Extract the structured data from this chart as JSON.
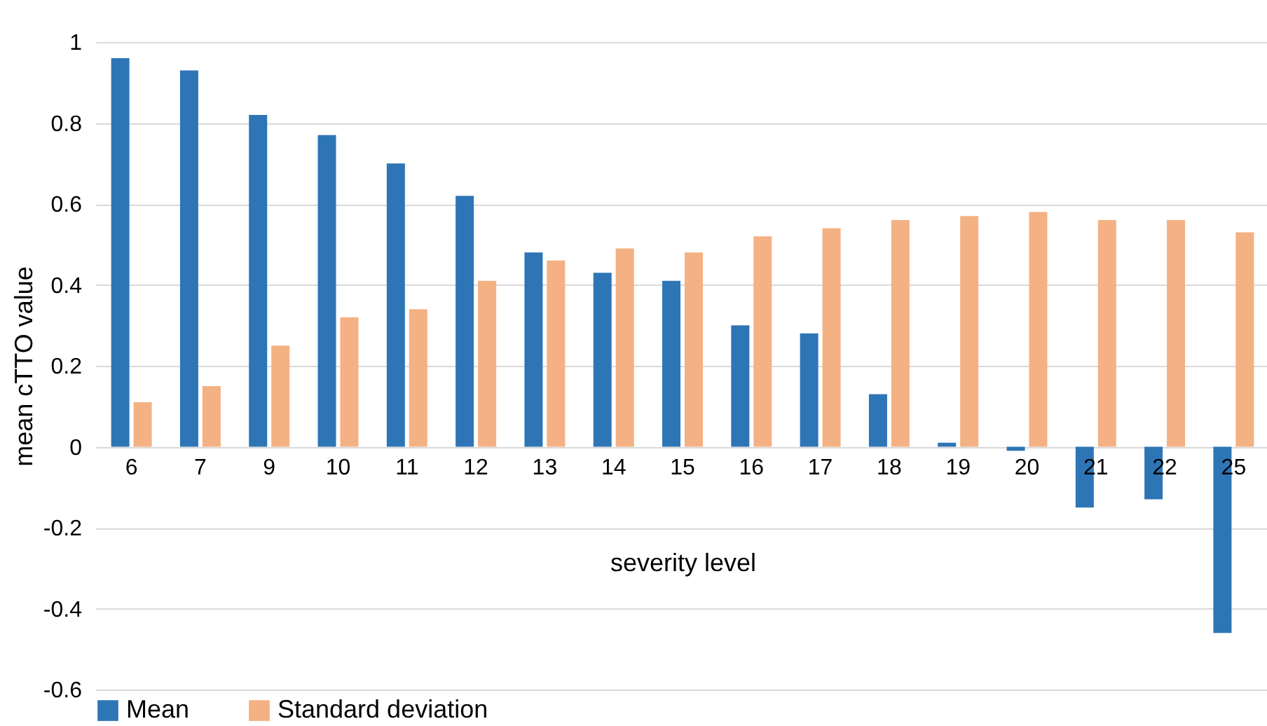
{
  "chart_data": {
    "type": "bar",
    "xlabel": "severity level",
    "ylabel": "mean cTTO value",
    "categories": [
      "6",
      "7",
      "9",
      "10",
      "11",
      "12",
      "13",
      "14",
      "15",
      "16",
      "17",
      "18",
      "19",
      "20",
      "21",
      "22",
      "25"
    ],
    "series": [
      {
        "name": "Mean",
        "color": "#2e75b6",
        "values": [
          0.96,
          0.93,
          0.82,
          0.77,
          0.7,
          0.62,
          0.48,
          0.43,
          0.41,
          0.3,
          0.28,
          0.13,
          0.01,
          -0.01,
          -0.15,
          -0.13,
          -0.46
        ]
      },
      {
        "name": "Standard deviation",
        "color": "#f4b183",
        "values": [
          0.11,
          0.15,
          0.25,
          0.32,
          0.34,
          0.41,
          0.46,
          0.49,
          0.48,
          0.52,
          0.54,
          0.56,
          0.57,
          0.58,
          0.56,
          0.56,
          0.53
        ]
      }
    ],
    "ylim": [
      -0.6,
      1
    ],
    "yticks": [
      -0.6,
      -0.4,
      -0.2,
      0,
      0.2,
      0.4,
      0.6,
      0.8,
      1
    ],
    "grid": "y",
    "legend": "bottom"
  }
}
